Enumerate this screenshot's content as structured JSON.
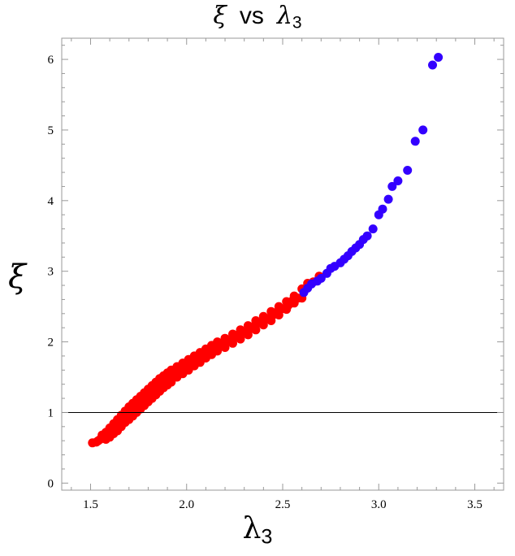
{
  "chart_data": {
    "type": "scatter",
    "title": {
      "sym1": "ξ",
      "vs": "vs",
      "sym2": "λ",
      "sub2": "3"
    },
    "xlabel": {
      "sym": "λ",
      "sub": "3"
    },
    "ylabel": "ξ",
    "xlim": [
      1.35,
      3.65
    ],
    "ylim": [
      -0.1,
      6.3
    ],
    "xticks": [
      1.5,
      2.0,
      2.5,
      3.0,
      3.5
    ],
    "xtick_labels": [
      "1.5",
      "2.0",
      "2.5",
      "3.0",
      "3.5"
    ],
    "yticks": [
      0,
      1,
      2,
      3,
      4,
      5,
      6
    ],
    "ytick_labels": [
      "0",
      "1",
      "2",
      "3",
      "4",
      "5",
      "6"
    ],
    "hline": 1,
    "grid": false,
    "colors": {
      "red": "#ff0000",
      "blue": "#3300ff",
      "frame": "#999999",
      "hline": "#000000"
    },
    "series": [
      {
        "color": "#ff0000",
        "points": [
          [
            1.51,
            0.57
          ],
          [
            1.53,
            0.58
          ],
          [
            1.55,
            0.62
          ],
          [
            1.56,
            0.68
          ],
          [
            1.58,
            0.72
          ],
          [
            1.6,
            0.78
          ],
          [
            1.62,
            0.84
          ],
          [
            1.64,
            0.9
          ],
          [
            1.66,
            0.96
          ],
          [
            1.68,
            1.02
          ],
          [
            1.7,
            1.08
          ],
          [
            1.72,
            1.13
          ],
          [
            1.74,
            1.18
          ],
          [
            1.76,
            1.23
          ],
          [
            1.78,
            1.28
          ],
          [
            1.8,
            1.33
          ],
          [
            1.82,
            1.38
          ],
          [
            1.84,
            1.43
          ],
          [
            1.86,
            1.48
          ],
          [
            1.88,
            1.52
          ],
          [
            1.9,
            1.56
          ],
          [
            1.92,
            1.6
          ],
          [
            1.95,
            1.65
          ],
          [
            1.98,
            1.7
          ],
          [
            2.01,
            1.75
          ],
          [
            2.04,
            1.8
          ],
          [
            2.07,
            1.85
          ],
          [
            2.1,
            1.9
          ],
          [
            2.13,
            1.95
          ],
          [
            2.16,
            2.0
          ],
          [
            2.2,
            2.05
          ],
          [
            2.24,
            2.11
          ],
          [
            2.28,
            2.17
          ],
          [
            2.32,
            2.23
          ],
          [
            2.36,
            2.3
          ],
          [
            2.4,
            2.36
          ],
          [
            2.44,
            2.43
          ],
          [
            2.48,
            2.5
          ],
          [
            2.52,
            2.57
          ],
          [
            2.56,
            2.65
          ],
          [
            2.6,
            2.75
          ],
          [
            2.63,
            2.83
          ],
          [
            2.66,
            2.85
          ],
          [
            1.58,
            0.62
          ],
          [
            1.6,
            0.65
          ],
          [
            1.62,
            0.7
          ],
          [
            1.64,
            0.74
          ],
          [
            1.66,
            0.8
          ],
          [
            1.68,
            0.86
          ],
          [
            1.7,
            0.9
          ],
          [
            1.72,
            0.95
          ],
          [
            1.74,
            1.0
          ],
          [
            1.76,
            1.05
          ],
          [
            1.78,
            1.1
          ],
          [
            1.8,
            1.15
          ],
          [
            1.82,
            1.2
          ],
          [
            1.84,
            1.25
          ],
          [
            1.86,
            1.3
          ],
          [
            1.88,
            1.35
          ],
          [
            1.9,
            1.39
          ],
          [
            1.92,
            1.43
          ],
          [
            1.95,
            1.5
          ],
          [
            1.98,
            1.55
          ],
          [
            2.01,
            1.6
          ],
          [
            2.04,
            1.66
          ],
          [
            2.07,
            1.71
          ],
          [
            2.1,
            1.77
          ],
          [
            2.13,
            1.82
          ],
          [
            2.16,
            1.87
          ],
          [
            2.2,
            1.92
          ],
          [
            2.24,
            1.98
          ],
          [
            2.28,
            2.04
          ],
          [
            2.32,
            2.1
          ],
          [
            2.36,
            2.17
          ],
          [
            2.4,
            2.24
          ],
          [
            2.44,
            2.3
          ],
          [
            2.48,
            2.38
          ],
          [
            2.52,
            2.46
          ],
          [
            2.56,
            2.55
          ],
          [
            2.6,
            2.62
          ],
          [
            1.54,
            0.6
          ],
          [
            1.57,
            0.66
          ],
          [
            1.61,
            0.75
          ],
          [
            1.65,
            0.85
          ],
          [
            1.69,
            0.96
          ],
          [
            1.73,
            1.06
          ],
          [
            1.77,
            1.16
          ],
          [
            1.81,
            1.26
          ],
          [
            1.85,
            1.36
          ],
          [
            1.89,
            1.44
          ],
          [
            1.93,
            1.52
          ],
          [
            1.97,
            1.6
          ],
          [
            2.02,
            1.68
          ],
          [
            2.06,
            1.76
          ],
          [
            2.11,
            1.84
          ],
          [
            2.15,
            1.91
          ],
          [
            2.19,
            1.98
          ],
          [
            2.25,
            2.07
          ],
          [
            2.3,
            2.14
          ],
          [
            2.35,
            2.22
          ],
          [
            2.42,
            2.33
          ],
          [
            2.47,
            2.42
          ],
          [
            2.53,
            2.52
          ],
          [
            2.58,
            2.62
          ],
          [
            1.63,
            0.82
          ],
          [
            1.67,
            0.92
          ],
          [
            1.71,
            1.02
          ],
          [
            1.75,
            1.12
          ],
          [
            1.79,
            1.2
          ],
          [
            1.83,
            1.3
          ],
          [
            1.87,
            1.4
          ],
          [
            1.91,
            1.48
          ],
          [
            1.96,
            1.56
          ],
          [
            2.0,
            1.63
          ],
          [
            2.05,
            1.72
          ],
          [
            2.09,
            1.8
          ],
          [
            2.14,
            1.88
          ],
          [
            2.18,
            1.94
          ],
          [
            2.22,
            2.01
          ],
          [
            2.27,
            2.1
          ],
          [
            2.33,
            2.18
          ],
          [
            2.38,
            2.27
          ],
          [
            2.45,
            2.38
          ],
          [
            2.5,
            2.47
          ],
          [
            2.55,
            2.58
          ],
          [
            2.69,
            2.93
          ]
        ]
      },
      {
        "color": "#3300ff",
        "points": [
          [
            2.61,
            2.7
          ],
          [
            2.63,
            2.76
          ],
          [
            2.65,
            2.82
          ],
          [
            2.68,
            2.86
          ],
          [
            2.7,
            2.9
          ],
          [
            2.73,
            2.97
          ],
          [
            2.75,
            3.04
          ],
          [
            2.77,
            3.07
          ],
          [
            2.8,
            3.12
          ],
          [
            2.82,
            3.17
          ],
          [
            2.84,
            3.22
          ],
          [
            2.86,
            3.28
          ],
          [
            2.88,
            3.33
          ],
          [
            2.9,
            3.38
          ],
          [
            2.92,
            3.45
          ],
          [
            2.94,
            3.5
          ],
          [
            2.97,
            3.6
          ],
          [
            3.0,
            3.8
          ],
          [
            3.02,
            3.88
          ],
          [
            3.05,
            4.02
          ],
          [
            3.07,
            4.2
          ],
          [
            3.1,
            4.28
          ],
          [
            3.15,
            4.43
          ],
          [
            3.19,
            4.84
          ],
          [
            3.23,
            5.0
          ],
          [
            3.28,
            5.92
          ],
          [
            3.31,
            6.03
          ]
        ]
      }
    ]
  }
}
